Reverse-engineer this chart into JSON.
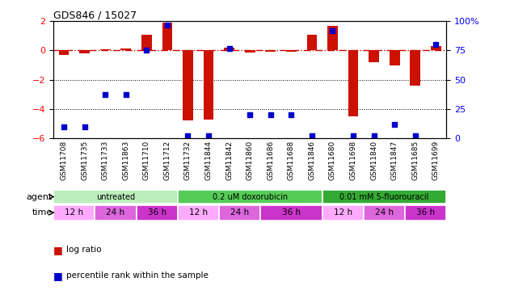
{
  "title": "GDS846 / 15027",
  "samples": [
    "GSM11708",
    "GSM11735",
    "GSM11733",
    "GSM11863",
    "GSM11710",
    "GSM11712",
    "GSM11732",
    "GSM11844",
    "GSM11842",
    "GSM11860",
    "GSM11686",
    "GSM11688",
    "GSM11846",
    "GSM11680",
    "GSM11698",
    "GSM11840",
    "GSM11847",
    "GSM11685",
    "GSM11699"
  ],
  "log_ratio": [
    -0.3,
    -0.2,
    0.1,
    0.15,
    1.1,
    1.9,
    -4.8,
    -4.7,
    0.2,
    -0.15,
    -0.1,
    -0.1,
    1.1,
    1.7,
    -4.5,
    -0.8,
    -1.0,
    -2.4,
    0.3
  ],
  "percentile_rank": [
    10,
    10,
    37,
    37,
    75,
    97,
    2,
    2,
    77,
    20,
    20,
    20,
    2,
    92,
    2,
    2,
    12,
    2,
    80
  ],
  "ylim_left": [
    -6,
    2
  ],
  "ylim_right": [
    0,
    100
  ],
  "yticks_left": [
    -6,
    -4,
    -2,
    0,
    2
  ],
  "yticks_right": [
    0,
    25,
    50,
    75,
    100
  ],
  "hline_y": 0,
  "dotted_lines": [
    -2,
    -4
  ],
  "bar_color": "#cc1100",
  "scatter_color": "#0000cc",
  "dashed_line_color": "#cc0000",
  "agent_groups": [
    {
      "label": "untreated",
      "start": 0,
      "end": 6,
      "color": "#bbeebb"
    },
    {
      "label": "0.2 uM doxorubicin",
      "start": 6,
      "end": 13,
      "color": "#55cc55"
    },
    {
      "label": "0.01 mM 5-fluorouracil",
      "start": 13,
      "end": 19,
      "color": "#33aa33"
    }
  ],
  "time_groups": [
    {
      "label": "12 h",
      "start": 0,
      "end": 2,
      "color": "#ffaaff"
    },
    {
      "label": "24 h",
      "start": 2,
      "end": 4,
      "color": "#dd66dd"
    },
    {
      "label": "36 h",
      "start": 4,
      "end": 6,
      "color": "#cc33cc"
    },
    {
      "label": "12 h",
      "start": 6,
      "end": 8,
      "color": "#ffaaff"
    },
    {
      "label": "24 h",
      "start": 8,
      "end": 10,
      "color": "#dd66dd"
    },
    {
      "label": "36 h",
      "start": 10,
      "end": 13,
      "color": "#cc33cc"
    },
    {
      "label": "12 h",
      "start": 13,
      "end": 15,
      "color": "#ffaaff"
    },
    {
      "label": "24 h",
      "start": 15,
      "end": 17,
      "color": "#dd66dd"
    },
    {
      "label": "36 h",
      "start": 17,
      "end": 19,
      "color": "#cc33cc"
    }
  ],
  "legend_items": [
    {
      "label": "log ratio",
      "color": "#cc1100"
    },
    {
      "label": "percentile rank within the sample",
      "color": "#0000cc"
    }
  ],
  "bar_width": 0.5,
  "scatter_size": 22,
  "bg_color": "#ffffff",
  "tick_bg_color": "#cccccc",
  "main_bg_color": "#ffffff"
}
